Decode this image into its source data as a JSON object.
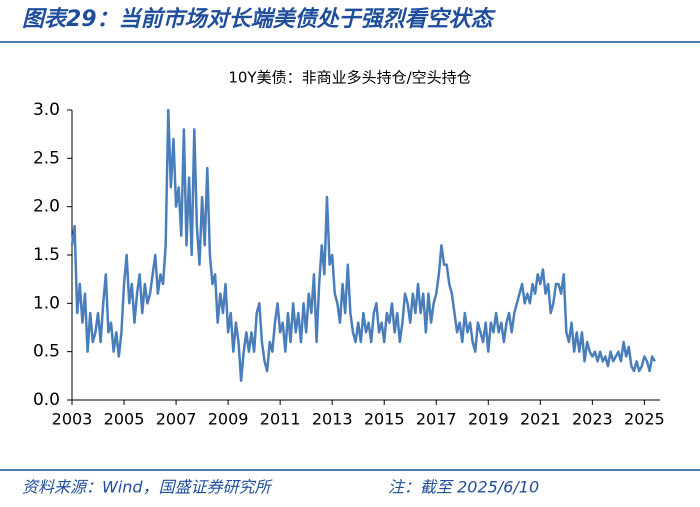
{
  "header": {
    "title": "图表29：当前市场对长端美债处于强烈看空状态"
  },
  "chart_data": {
    "type": "line",
    "title": "10Y美债：非商业多头持仓/空头持仓",
    "x": [
      2003,
      2003.1,
      2003.2,
      2003.3,
      2003.4,
      2003.5,
      2003.6,
      2003.7,
      2003.8,
      2003.9,
      2004,
      2004.1,
      2004.2,
      2004.3,
      2004.4,
      2004.5,
      2004.6,
      2004.7,
      2004.8,
      2004.9,
      2005,
      2005.1,
      2005.2,
      2005.3,
      2005.4,
      2005.5,
      2005.6,
      2005.7,
      2005.8,
      2005.9,
      2006,
      2006.1,
      2006.2,
      2006.3,
      2006.4,
      2006.5,
      2006.6,
      2006.7,
      2006.8,
      2006.9,
      2007,
      2007.1,
      2007.2,
      2007.3,
      2007.4,
      2007.5,
      2007.6,
      2007.7,
      2007.8,
      2007.9,
      2008,
      2008.1,
      2008.2,
      2008.3,
      2008.4,
      2008.5,
      2008.6,
      2008.7,
      2008.8,
      2008.9,
      2009,
      2009.1,
      2009.2,
      2009.3,
      2009.4,
      2009.5,
      2009.6,
      2009.7,
      2009.8,
      2009.9,
      2010,
      2010.1,
      2010.2,
      2010.3,
      2010.4,
      2010.5,
      2010.6,
      2010.7,
      2010.8,
      2010.9,
      2011,
      2011.1,
      2011.2,
      2011.3,
      2011.4,
      2011.5,
      2011.6,
      2011.7,
      2011.8,
      2011.9,
      2012,
      2012.1,
      2012.2,
      2012.3,
      2012.4,
      2012.5,
      2012.6,
      2012.7,
      2012.8,
      2012.9,
      2013,
      2013.1,
      2013.2,
      2013.3,
      2013.4,
      2013.5,
      2013.6,
      2013.7,
      2013.8,
      2013.9,
      2014,
      2014.1,
      2014.2,
      2014.3,
      2014.4,
      2014.5,
      2014.6,
      2014.7,
      2014.8,
      2014.9,
      2015,
      2015.1,
      2015.2,
      2015.3,
      2015.4,
      2015.5,
      2015.6,
      2015.7,
      2015.8,
      2015.9,
      2016,
      2016.1,
      2016.2,
      2016.3,
      2016.4,
      2016.5,
      2016.6,
      2016.7,
      2016.8,
      2016.9,
      2017,
      2017.1,
      2017.2,
      2017.3,
      2017.4,
      2017.5,
      2017.6,
      2017.7,
      2017.8,
      2017.9,
      2018,
      2018.1,
      2018.2,
      2018.3,
      2018.4,
      2018.5,
      2018.6,
      2018.7,
      2018.8,
      2018.9,
      2019,
      2019.1,
      2019.2,
      2019.3,
      2019.4,
      2019.5,
      2019.6,
      2019.7,
      2019.8,
      2019.9,
      2020,
      2020.1,
      2020.2,
      2020.3,
      2020.4,
      2020.5,
      2020.6,
      2020.7,
      2020.8,
      2020.9,
      2021,
      2021.1,
      2021.2,
      2021.3,
      2021.4,
      2021.5,
      2021.6,
      2021.7,
      2021.8,
      2021.9,
      2022,
      2022.1,
      2022.2,
      2022.3,
      2022.4,
      2022.5,
      2022.6,
      2022.7,
      2022.8,
      2022.9,
      2023,
      2023.1,
      2023.2,
      2023.3,
      2023.4,
      2023.5,
      2023.6,
      2023.7,
      2023.8,
      2023.9,
      2024,
      2024.1,
      2024.2,
      2024.3,
      2024.4,
      2024.5,
      2024.6,
      2024.7,
      2024.8,
      2024.9,
      2025,
      2025.1,
      2025.2,
      2025.3,
      2025.4
    ],
    "series": [
      {
        "color": "#4a7ebb",
        "values": [
          1.6,
          1.8,
          0.9,
          1.2,
          0.8,
          1.1,
          0.5,
          0.9,
          0.6,
          0.7,
          0.9,
          0.6,
          1.0,
          1.3,
          0.7,
          0.8,
          0.5,
          0.7,
          0.45,
          0.7,
          1.2,
          1.5,
          1.0,
          1.2,
          0.8,
          1.1,
          1.3,
          0.9,
          1.2,
          1.0,
          1.1,
          1.3,
          1.5,
          1.1,
          1.3,
          1.2,
          1.6,
          3.0,
          2.2,
          2.7,
          2.0,
          2.2,
          1.7,
          2.8,
          1.6,
          2.3,
          1.5,
          2.8,
          1.8,
          1.4,
          2.1,
          1.6,
          2.4,
          1.5,
          1.2,
          1.3,
          0.8,
          1.1,
          0.9,
          1.2,
          0.7,
          0.9,
          0.5,
          0.8,
          0.6,
          0.2,
          0.5,
          0.7,
          0.5,
          0.7,
          0.5,
          0.9,
          1.0,
          0.6,
          0.4,
          0.3,
          0.6,
          0.5,
          0.8,
          1.0,
          0.7,
          0.8,
          0.5,
          0.9,
          0.6,
          1.0,
          0.7,
          0.9,
          0.6,
          1.0,
          0.7,
          1.1,
          0.9,
          1.3,
          0.6,
          1.2,
          1.6,
          1.3,
          2.1,
          1.4,
          1.5,
          1.1,
          1.0,
          0.8,
          1.2,
          0.9,
          1.4,
          0.9,
          0.7,
          0.6,
          0.8,
          0.6,
          0.9,
          0.7,
          0.8,
          0.6,
          0.9,
          1.0,
          0.7,
          0.8,
          0.6,
          0.9,
          0.8,
          1.0,
          0.7,
          0.9,
          0.6,
          0.8,
          1.1,
          1.0,
          0.8,
          1.1,
          0.9,
          1.2,
          0.9,
          1.1,
          0.7,
          1.1,
          0.8,
          1.0,
          1.1,
          1.3,
          1.6,
          1.4,
          1.4,
          1.2,
          1.1,
          0.9,
          0.7,
          0.8,
          0.6,
          0.9,
          0.7,
          0.8,
          0.6,
          0.5,
          0.8,
          0.7,
          0.6,
          0.8,
          0.5,
          0.8,
          0.7,
          0.9,
          0.7,
          0.8,
          0.6,
          0.8,
          0.9,
          0.7,
          0.9,
          1.0,
          1.1,
          1.2,
          1.0,
          1.1,
          1.0,
          1.2,
          1.1,
          1.3,
          1.2,
          1.35,
          1.1,
          1.2,
          0.9,
          1.0,
          1.2,
          1.2,
          1.1,
          1.3,
          0.7,
          0.6,
          0.8,
          0.5,
          0.7,
          0.5,
          0.7,
          0.4,
          0.6,
          0.5,
          0.45,
          0.5,
          0.4,
          0.5,
          0.4,
          0.45,
          0.35,
          0.5,
          0.4,
          0.45,
          0.5,
          0.4,
          0.6,
          0.45,
          0.55,
          0.35,
          0.3,
          0.4,
          0.3,
          0.35,
          0.45,
          0.4,
          0.3,
          0.45,
          0.4
        ]
      }
    ],
    "xlim": [
      2003,
      2025.6
    ],
    "xticks": [
      2003,
      2005,
      2007,
      2009,
      2011,
      2013,
      2015,
      2017,
      2019,
      2021,
      2023,
      2025
    ],
    "ylim": [
      0,
      3
    ],
    "yticks": [
      {
        "value": 0,
        "label": "0.0"
      },
      0.5,
      {
        "value": 1,
        "label": "1.0"
      },
      1.5,
      {
        "value": 2,
        "label": "2.0"
      },
      2.5,
      {
        "value": 3,
        "label": "3.0"
      }
    ],
    "grid": false
  },
  "footer": {
    "source": "资料来源：Wind，国盛证券研究所",
    "note": "注：截至 2025/6/10"
  }
}
